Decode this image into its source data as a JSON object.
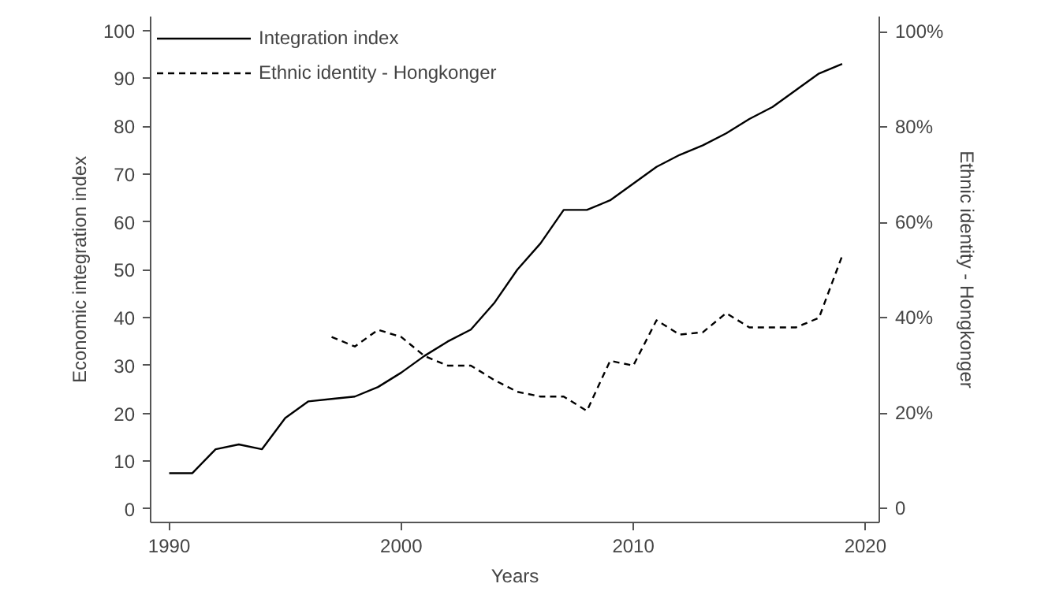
{
  "chart_data": {
    "type": "line",
    "xlabel": "Years",
    "ylabel": "Economic integration index",
    "y2label": "Ethnic identity - Hongkonger",
    "xlim": [
      1989.2,
      2020.6
    ],
    "xticks": [
      1990,
      2000,
      2010,
      2020
    ],
    "ylim": [
      -2.8,
      102.9
    ],
    "yticks": [
      0,
      10,
      20,
      30,
      40,
      50,
      60,
      70,
      80,
      90,
      100
    ],
    "y2lim": [
      -2.9,
      103.2
    ],
    "y2ticks": [
      0,
      {
        "value": 20,
        "label": "20%"
      },
      {
        "value": 40,
        "label": "40%"
      },
      {
        "value": 60,
        "label": "60%"
      },
      {
        "value": 80,
        "label": "80%"
      },
      {
        "value": 100,
        "label": "100%"
      }
    ],
    "grid": false,
    "legend": "top left",
    "series": [
      {
        "name": "Integration index",
        "color": "#000000",
        "line_style": "solid",
        "x": [
          1990,
          1991,
          1992,
          1993,
          1994,
          1995,
          1996,
          1997,
          1998,
          1999,
          2000,
          2001,
          2002,
          2003,
          2004,
          2005,
          2006,
          2007,
          2008,
          2009,
          2010,
          2011,
          2012,
          2013,
          2014,
          2015,
          2016,
          2017,
          2018,
          2019
        ],
        "values": [
          7.5,
          7.5,
          12.5,
          13.5,
          12.5,
          19,
          22.5,
          23,
          23.5,
          25.5,
          28.5,
          32,
          35,
          37.5,
          43,
          50,
          55.5,
          62.5,
          62.5,
          64.5,
          68,
          71.5,
          74,
          76,
          78.5,
          81.5,
          84,
          87.5,
          91,
          93
        ]
      },
      {
        "name": "Ethnic identity - Hongkonger",
        "color": "#000000",
        "line_style": "dashed",
        "axis": "y2",
        "x": [
          1997,
          1998,
          1999,
          2000,
          2001,
          2002,
          2003,
          2004,
          2005,
          2006,
          2007,
          2008,
          2009,
          2010,
          2011,
          2012,
          2013,
          2014,
          2015,
          2016,
          2017,
          2018,
          2019
        ],
        "values": [
          36,
          34,
          37.5,
          36,
          32,
          30,
          30,
          27,
          24.5,
          23.5,
          23.5,
          20.5,
          31,
          30,
          39.5,
          36.5,
          37,
          41,
          38,
          38,
          38,
          40,
          53
        ]
      }
    ]
  }
}
